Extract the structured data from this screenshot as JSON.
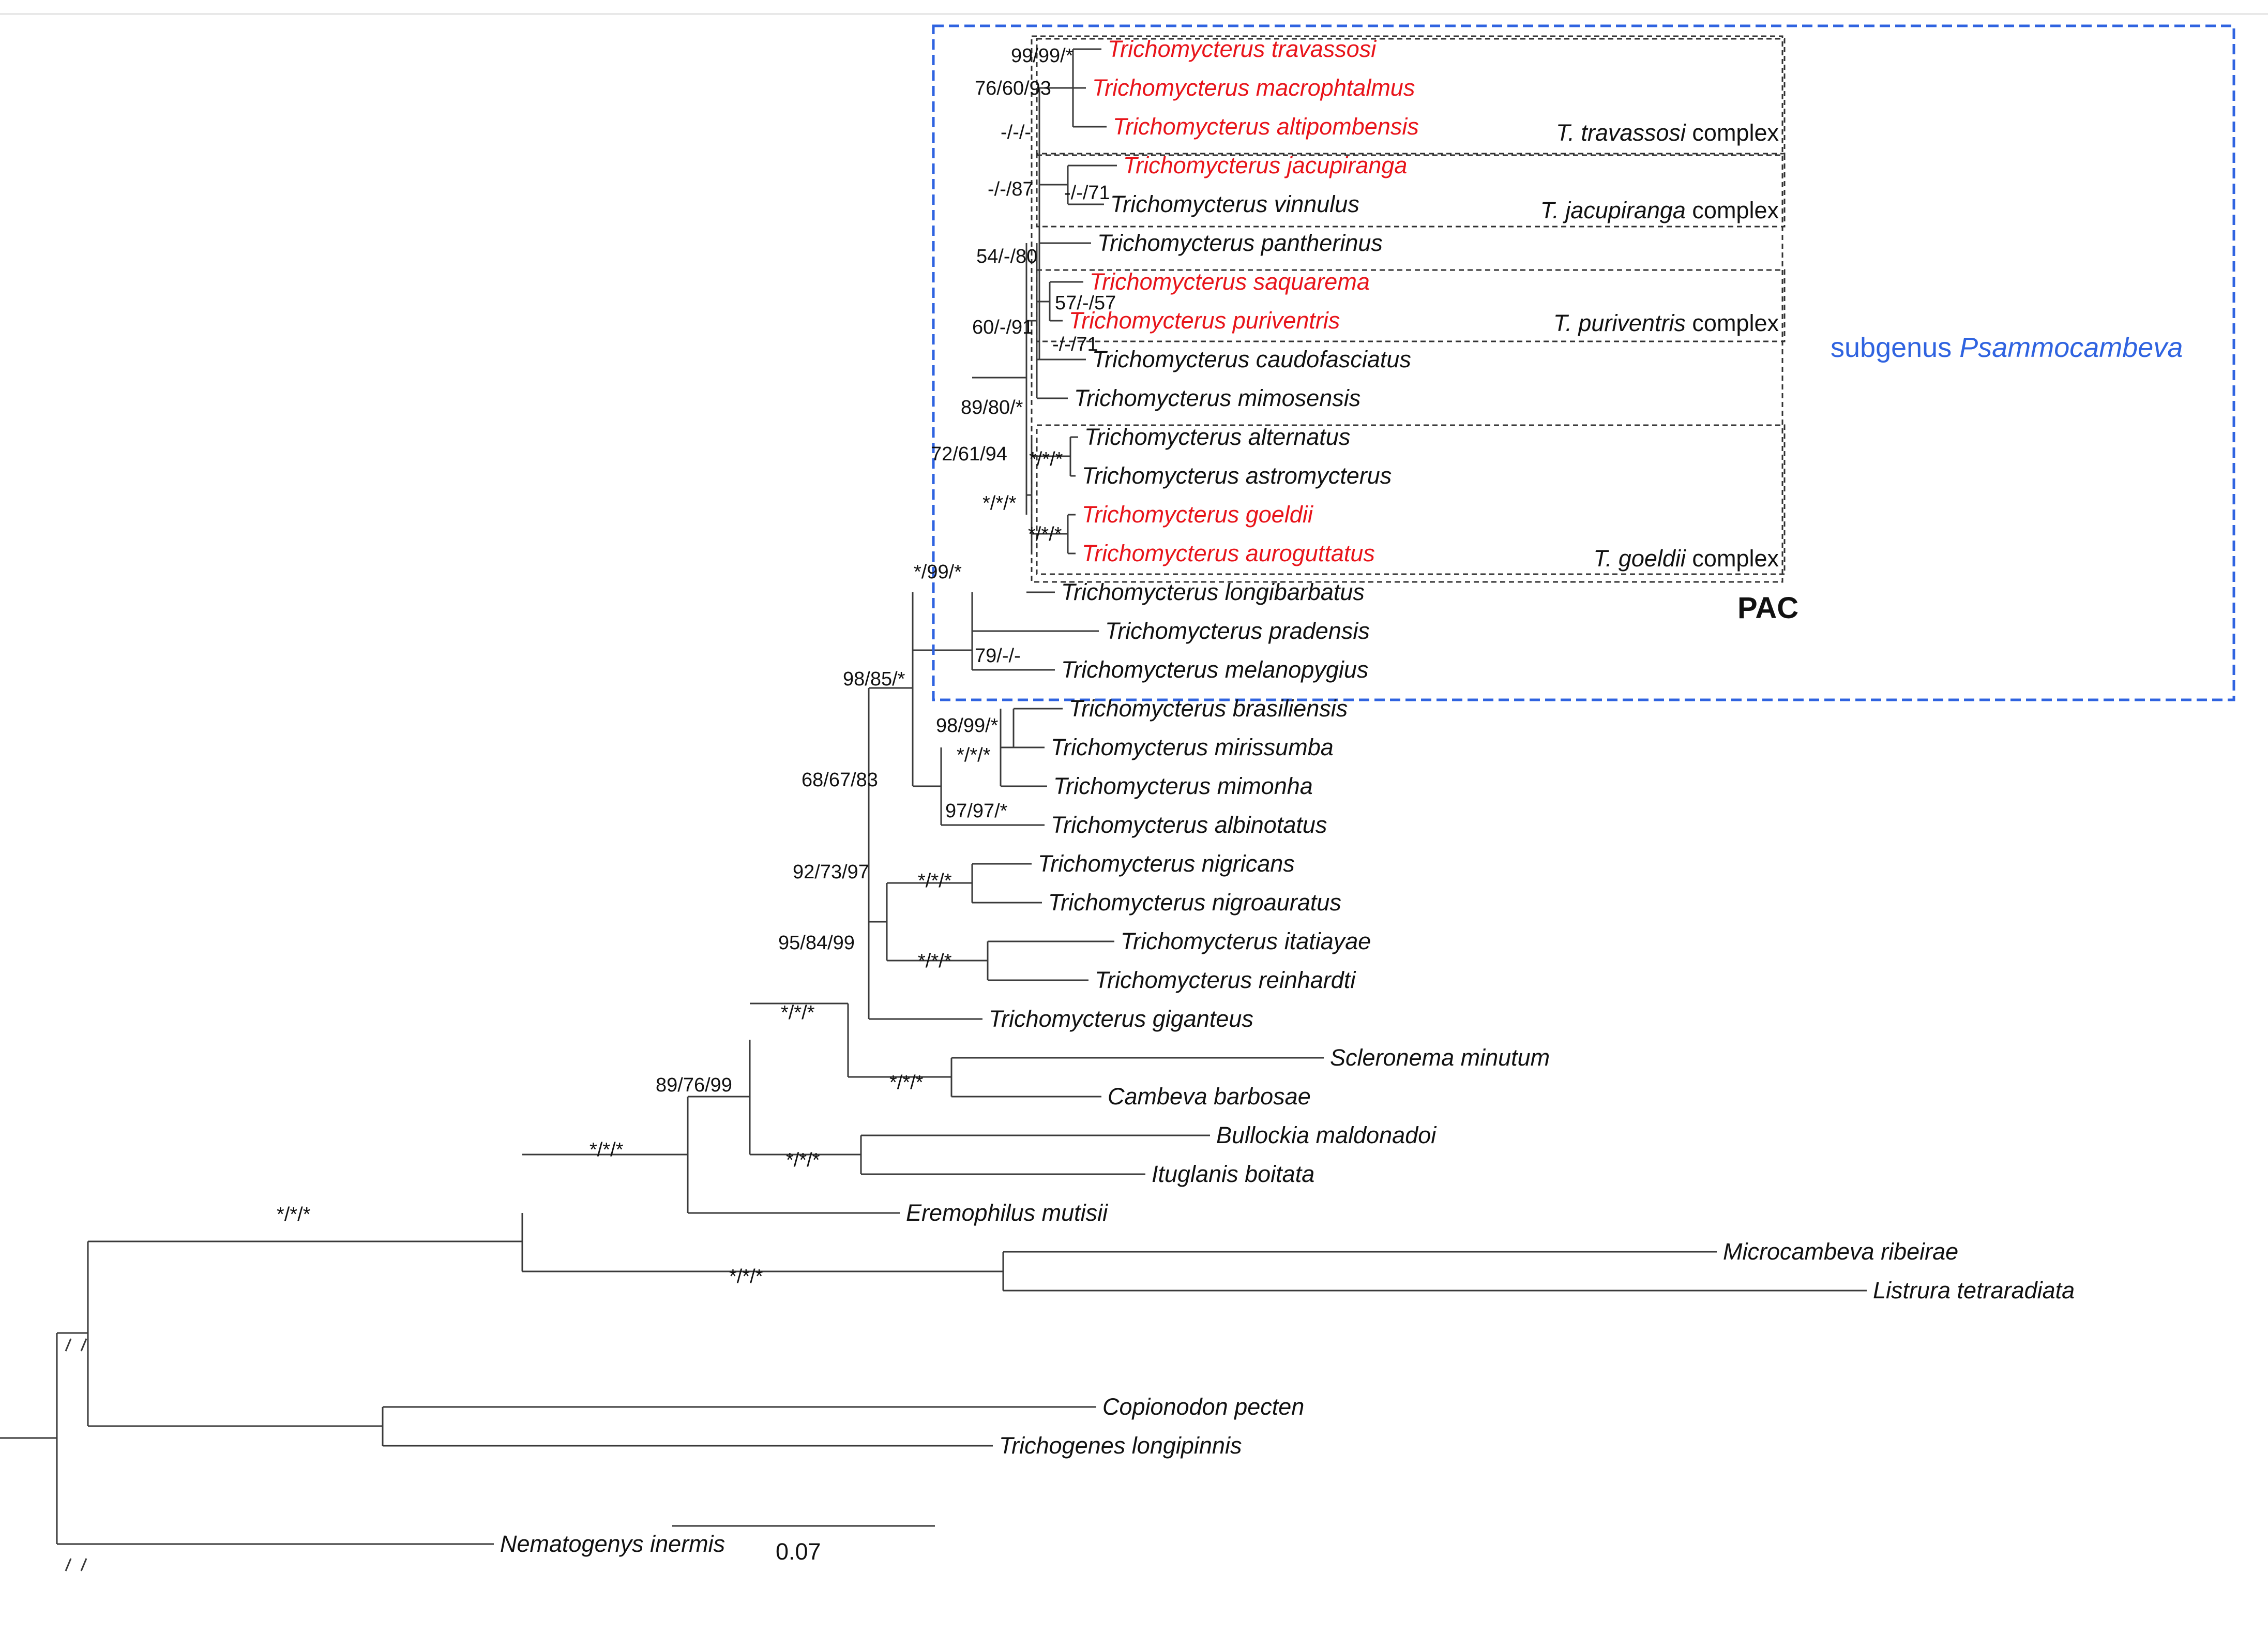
{
  "figure": {
    "subgenus_label_prefix": "subgenus ",
    "subgenus_label_name": "Psammocambeva",
    "pac_label": "PAC",
    "scale_label": "0.07",
    "colors": {
      "highlight": "#e8141a",
      "subgenus": "#2f63e0",
      "branch": "#3a3a3a"
    }
  },
  "taxa": [
    {
      "name": "Trichomycterus travassosi",
      "highlight": true
    },
    {
      "name": "Trichomycterus macrophtalmus",
      "highlight": true
    },
    {
      "name": "Trichomycterus altipombensis",
      "highlight": true
    },
    {
      "name": "Trichomycterus jacupiranga",
      "highlight": true
    },
    {
      "name": "Trichomycterus vinnulus",
      "highlight": false
    },
    {
      "name": "Trichomycterus pantherinus",
      "highlight": false
    },
    {
      "name": "Trichomycterus saquarema",
      "highlight": true
    },
    {
      "name": "Trichomycterus puriventris",
      "highlight": true
    },
    {
      "name": "Trichomycterus caudofasciatus",
      "highlight": false
    },
    {
      "name": "Trichomycterus mimosensis",
      "highlight": false
    },
    {
      "name": "Trichomycterus alternatus",
      "highlight": false
    },
    {
      "name": "Trichomycterus astromycterus",
      "highlight": false
    },
    {
      "name": "Trichomycterus goeldii",
      "highlight": true
    },
    {
      "name": "Trichomycterus auroguttatus",
      "highlight": true
    },
    {
      "name": "Trichomycterus longibarbatus",
      "highlight": false
    },
    {
      "name": "Trichomycterus pradensis",
      "highlight": false
    },
    {
      "name": "Trichomycterus melanopygius",
      "highlight": false
    },
    {
      "name": "Trichomycterus brasiliensis",
      "highlight": false
    },
    {
      "name": "Trichomycterus mirissumba",
      "highlight": false
    },
    {
      "name": "Trichomycterus mimonha",
      "highlight": false
    },
    {
      "name": "Trichomycterus albinotatus",
      "highlight": false
    },
    {
      "name": "Trichomycterus nigricans",
      "highlight": false
    },
    {
      "name": "Trichomycterus nigroauratus",
      "highlight": false
    },
    {
      "name": "Trichomycterus itatiayae",
      "highlight": false
    },
    {
      "name": "Trichomycterus reinhardti",
      "highlight": false
    },
    {
      "name": "Trichomycterus giganteus",
      "highlight": false
    },
    {
      "name": "Scleronema minutum",
      "highlight": false
    },
    {
      "name": "Cambeva barbosae",
      "highlight": false
    },
    {
      "name": "Bullockia maldonadoi",
      "highlight": false
    },
    {
      "name": "Ituglanis boitata",
      "highlight": false
    },
    {
      "name": "Eremophilus mutisii",
      "highlight": false
    },
    {
      "name": "Microcambeva ribeirae",
      "highlight": false
    },
    {
      "name": "Listrura tetraradiata",
      "highlight": false
    },
    {
      "name": "Copionodon pecten",
      "highlight": false
    },
    {
      "name": "Trichogenes longipinnis",
      "highlight": false
    },
    {
      "name": "Nematogenys inermis",
      "highlight": false
    }
  ],
  "supports": [
    "99/99/*",
    "76/60/93",
    "-/-/-",
    "-/-/87",
    "-/-/71",
    "54/-/80",
    "57/-/57",
    "60/-/91",
    "-/-/71",
    "89/80/*",
    "72/61/94",
    "*/*/*",
    "*/*/*",
    "*/*/*",
    "*/99/*",
    "79/-/-",
    "98/85/*",
    "98/99/*",
    "*/*/*",
    "97/97/*",
    "68/67/83",
    "92/73/97",
    "*/*/*",
    "*/*/*",
    "95/84/99",
    "*/*/*",
    "*/*/*",
    "89/76/99",
    "*/*/*",
    "*/*/*",
    "*/*/*",
    "*/*/*"
  ],
  "complexes": [
    {
      "prefix": "T. ",
      "genus_rest": "travassosi",
      "suffix": " complex"
    },
    {
      "prefix": "T. ",
      "genus_rest": "jacupiranga",
      "suffix": " complex"
    },
    {
      "prefix": "T. ",
      "genus_rest": "puriventris",
      "suffix": " complex"
    },
    {
      "prefix": "T. ",
      "genus_rest": "goeldii",
      "suffix": " complex"
    }
  ]
}
